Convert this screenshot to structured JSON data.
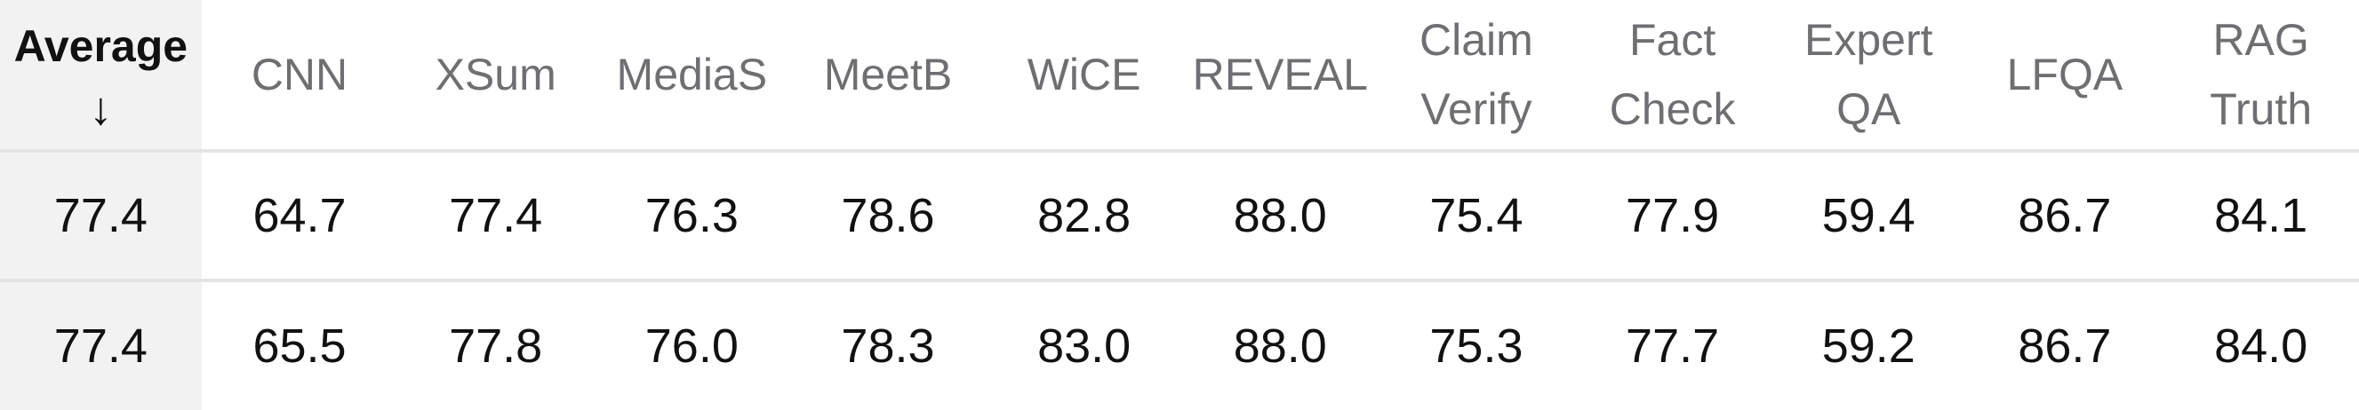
{
  "table": {
    "average_header": "Average",
    "sort_indicator": "↓",
    "columns": [
      [
        "CNN"
      ],
      [
        "XSum"
      ],
      [
        "MediaS"
      ],
      [
        "MeetB"
      ],
      [
        "WiCE"
      ],
      [
        "REVEAL"
      ],
      [
        "Claim",
        "Verify"
      ],
      [
        "Fact",
        "Check"
      ],
      [
        "Expert",
        "QA"
      ],
      [
        "LFQA"
      ],
      [
        "RAG",
        "Truth"
      ]
    ],
    "rows": [
      {
        "average": "77.4",
        "values": [
          "64.7",
          "77.4",
          "76.3",
          "78.6",
          "82.8",
          "88.0",
          "75.4",
          "77.9",
          "59.4",
          "86.7",
          "84.1"
        ]
      },
      {
        "average": "77.4",
        "values": [
          "65.5",
          "77.8",
          "76.0",
          "78.3",
          "83.0",
          "88.0",
          "75.3",
          "77.7",
          "59.2",
          "86.7",
          "84.0"
        ]
      }
    ]
  }
}
